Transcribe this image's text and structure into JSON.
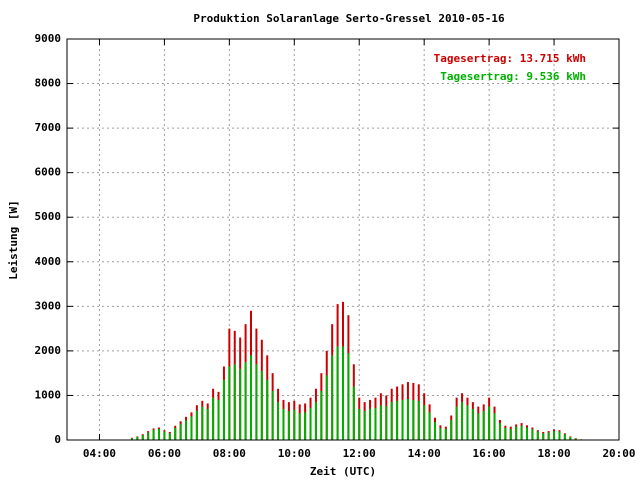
{
  "chart_data": {
    "type": "bar",
    "title": "Produktion Solaranlage Serto-Gressel 2010-05-16",
    "x_label": "Zeit (UTC)",
    "y_label": "Leistung [W]",
    "x": [
      300,
      310,
      320,
      330,
      340,
      350,
      360,
      370,
      380,
      390,
      400,
      410,
      420,
      430,
      440,
      450,
      460,
      470,
      480,
      490,
      500,
      510,
      520,
      530,
      540,
      550,
      560,
      570,
      580,
      590,
      600,
      610,
      620,
      630,
      640,
      650,
      660,
      670,
      680,
      690,
      700,
      710,
      720,
      730,
      740,
      750,
      760,
      770,
      780,
      790,
      800,
      810,
      820,
      830,
      840,
      850,
      860,
      870,
      880,
      890,
      900,
      910,
      920,
      930,
      940,
      950,
      960,
      970,
      980,
      990,
      1000,
      1010,
      1020,
      1030,
      1040,
      1050,
      1060,
      1070,
      1080,
      1090,
      1100,
      1110,
      1120,
      1130
    ],
    "series": [
      {
        "name": "Tagesertrag: 13.715 kWh",
        "color": "#cc0000",
        "values": [
          50,
          80,
          130,
          200,
          260,
          280,
          220,
          180,
          320,
          420,
          520,
          620,
          780,
          880,
          820,
          1150,
          1080,
          1650,
          2500,
          2450,
          2300,
          2600,
          2900,
          2500,
          2250,
          1900,
          1500,
          1150,
          900,
          850,
          880,
          800,
          820,
          950,
          1150,
          1500,
          2000,
          2600,
          3050,
          3100,
          2800,
          1700,
          950,
          850,
          900,
          950,
          1050,
          1000,
          1150,
          1200,
          1250,
          1300,
          1280,
          1250,
          1050,
          800,
          500,
          330,
          300,
          550,
          950,
          1050,
          950,
          850,
          750,
          800,
          950,
          750,
          450,
          320,
          300,
          350,
          380,
          330,
          280,
          220,
          180,
          200,
          240,
          220,
          150,
          80,
          40,
          15
        ]
      },
      {
        "name": "Tagesertrag: 9.536 kWh",
        "color": "#00b000",
        "values": [
          40,
          70,
          110,
          170,
          230,
          250,
          190,
          150,
          270,
          360,
          440,
          530,
          660,
          750,
          700,
          950,
          900,
          1350,
          1650,
          1700,
          1600,
          1750,
          1900,
          1700,
          1550,
          1350,
          1100,
          850,
          700,
          650,
          680,
          600,
          620,
          720,
          850,
          1100,
          1450,
          1900,
          2100,
          2100,
          1950,
          1200,
          700,
          650,
          700,
          720,
          780,
          760,
          850,
          880,
          900,
          920,
          900,
          880,
          780,
          620,
          400,
          270,
          250,
          450,
          750,
          850,
          780,
          700,
          600,
          650,
          750,
          600,
          380,
          270,
          250,
          300,
          320,
          280,
          240,
          190,
          150,
          170,
          200,
          190,
          130,
          70,
          35,
          10
        ]
      }
    ],
    "xlim": [
      180,
      1200
    ],
    "xticks": [
      {
        "value": 240,
        "label": "04:00"
      },
      {
        "value": 360,
        "label": "06:00"
      },
      {
        "value": 480,
        "label": "08:00"
      },
      {
        "value": 600,
        "label": "10:00"
      },
      {
        "value": 720,
        "label": "12:00"
      },
      {
        "value": 840,
        "label": "14:00"
      },
      {
        "value": 960,
        "label": "16:00"
      },
      {
        "value": 1080,
        "label": "18:00"
      },
      {
        "value": 1200,
        "label": "20:00"
      }
    ],
    "ylim": [
      0,
      9000
    ],
    "yticks": [
      0,
      1000,
      2000,
      3000,
      4000,
      5000,
      6000,
      7000,
      8000,
      9000
    ],
    "grid": true,
    "legend": "top-right"
  }
}
